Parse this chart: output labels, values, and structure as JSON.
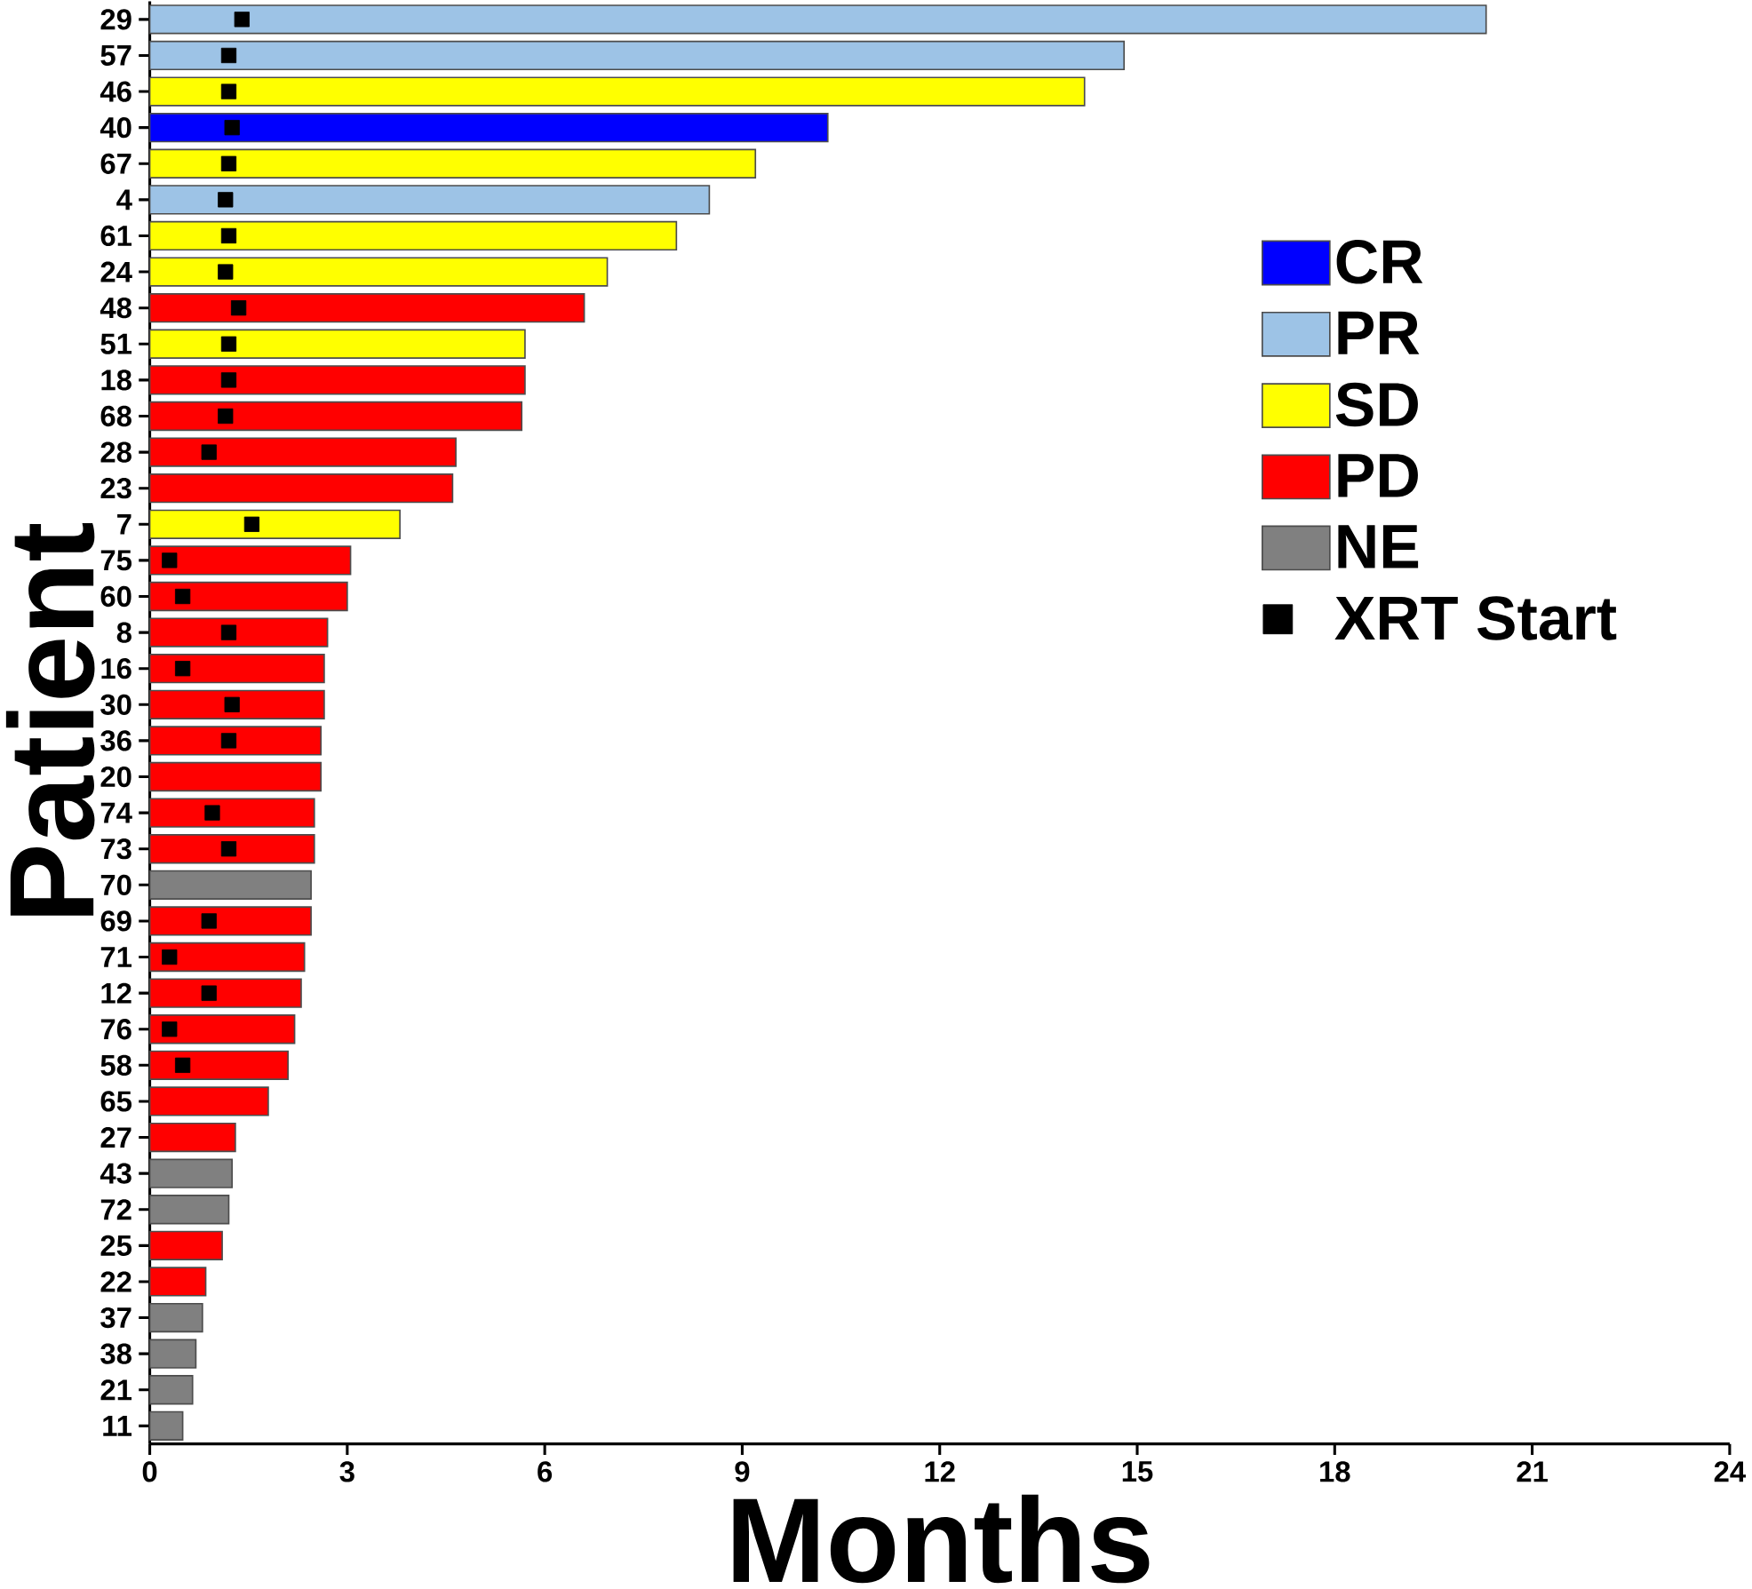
{
  "chart_data": {
    "type": "bar",
    "orientation": "horizontal",
    "xlabel": "Months",
    "ylabel": "Patient",
    "categories": [
      "29",
      "57",
      "46",
      "40",
      "67",
      "4",
      "61",
      "24",
      "48",
      "51",
      "18",
      "68",
      "28",
      "23",
      "7",
      "75",
      "60",
      "8",
      "16",
      "30",
      "36",
      "20",
      "74",
      "73",
      "70",
      "69",
      "71",
      "12",
      "76",
      "58",
      "65",
      "27",
      "43",
      "72",
      "25",
      "22",
      "37",
      "38",
      "21",
      "11"
    ],
    "series": [
      {
        "name": "CR",
        "color": "#0000ff",
        "values": [
          null,
          null,
          null,
          10.3,
          null,
          null,
          null,
          null,
          null,
          null,
          null,
          null,
          null,
          null,
          null,
          null,
          null,
          null,
          null,
          null,
          null,
          null,
          null,
          null,
          null,
          null,
          null,
          null,
          null,
          null,
          null,
          null,
          null,
          null,
          null,
          null,
          null,
          null,
          null,
          null
        ]
      },
      {
        "name": "PR",
        "color": "#9dc3e6",
        "values": [
          20.3,
          14.8,
          null,
          null,
          null,
          8.5,
          null,
          null,
          null,
          null,
          null,
          null,
          null,
          null,
          null,
          null,
          null,
          null,
          null,
          null,
          null,
          null,
          null,
          null,
          null,
          null,
          null,
          null,
          null,
          null,
          null,
          null,
          null,
          null,
          null,
          null,
          null,
          null,
          null,
          null
        ]
      },
      {
        "name": "SD",
        "color": "#ffff00",
        "values": [
          null,
          null,
          14.2,
          null,
          9.2,
          null,
          8.0,
          6.95,
          null,
          5.7,
          null,
          null,
          null,
          null,
          3.8,
          null,
          null,
          null,
          null,
          null,
          null,
          null,
          null,
          null,
          null,
          null,
          null,
          null,
          null,
          null,
          null,
          null,
          null,
          null,
          null,
          null,
          null,
          null,
          null,
          null
        ]
      },
      {
        "name": "PD",
        "color": "#ff0000",
        "values": [
          null,
          null,
          null,
          null,
          null,
          null,
          null,
          null,
          6.6,
          null,
          5.7,
          5.65,
          4.65,
          4.6,
          null,
          3.05,
          3.0,
          2.7,
          2.65,
          2.65,
          2.6,
          2.6,
          2.5,
          2.5,
          null,
          2.45,
          2.35,
          2.3,
          2.2,
          2.1,
          1.8,
          1.3,
          null,
          null,
          1.1,
          0.85,
          null,
          null,
          null,
          null
        ]
      },
      {
        "name": "NE",
        "color": "#808080",
        "values": [
          null,
          null,
          null,
          null,
          null,
          null,
          null,
          null,
          null,
          null,
          null,
          null,
          null,
          null,
          null,
          null,
          null,
          null,
          null,
          null,
          null,
          null,
          null,
          null,
          2.45,
          null,
          null,
          null,
          null,
          null,
          null,
          null,
          1.25,
          1.2,
          null,
          null,
          0.8,
          0.7,
          0.65,
          0.5
        ]
      },
      {
        "name": "XRT Start",
        "type": "scatter",
        "marker": "square",
        "color": "#000000",
        "values": [
          1.4,
          1.2,
          1.2,
          1.25,
          1.2,
          1.15,
          1.2,
          1.15,
          1.35,
          1.2,
          1.2,
          1.15,
          0.9,
          null,
          1.55,
          0.3,
          0.5,
          1.2,
          0.5,
          1.25,
          1.2,
          null,
          0.95,
          1.2,
          null,
          0.9,
          0.3,
          0.9,
          0.3,
          0.5,
          null,
          null,
          null,
          null,
          null,
          null,
          null,
          null,
          null,
          null
        ]
      }
    ],
    "xlim": [
      0,
      24
    ],
    "xticks": [
      0,
      3,
      6,
      9,
      12,
      15,
      18,
      21,
      24
    ],
    "legend": "right"
  }
}
